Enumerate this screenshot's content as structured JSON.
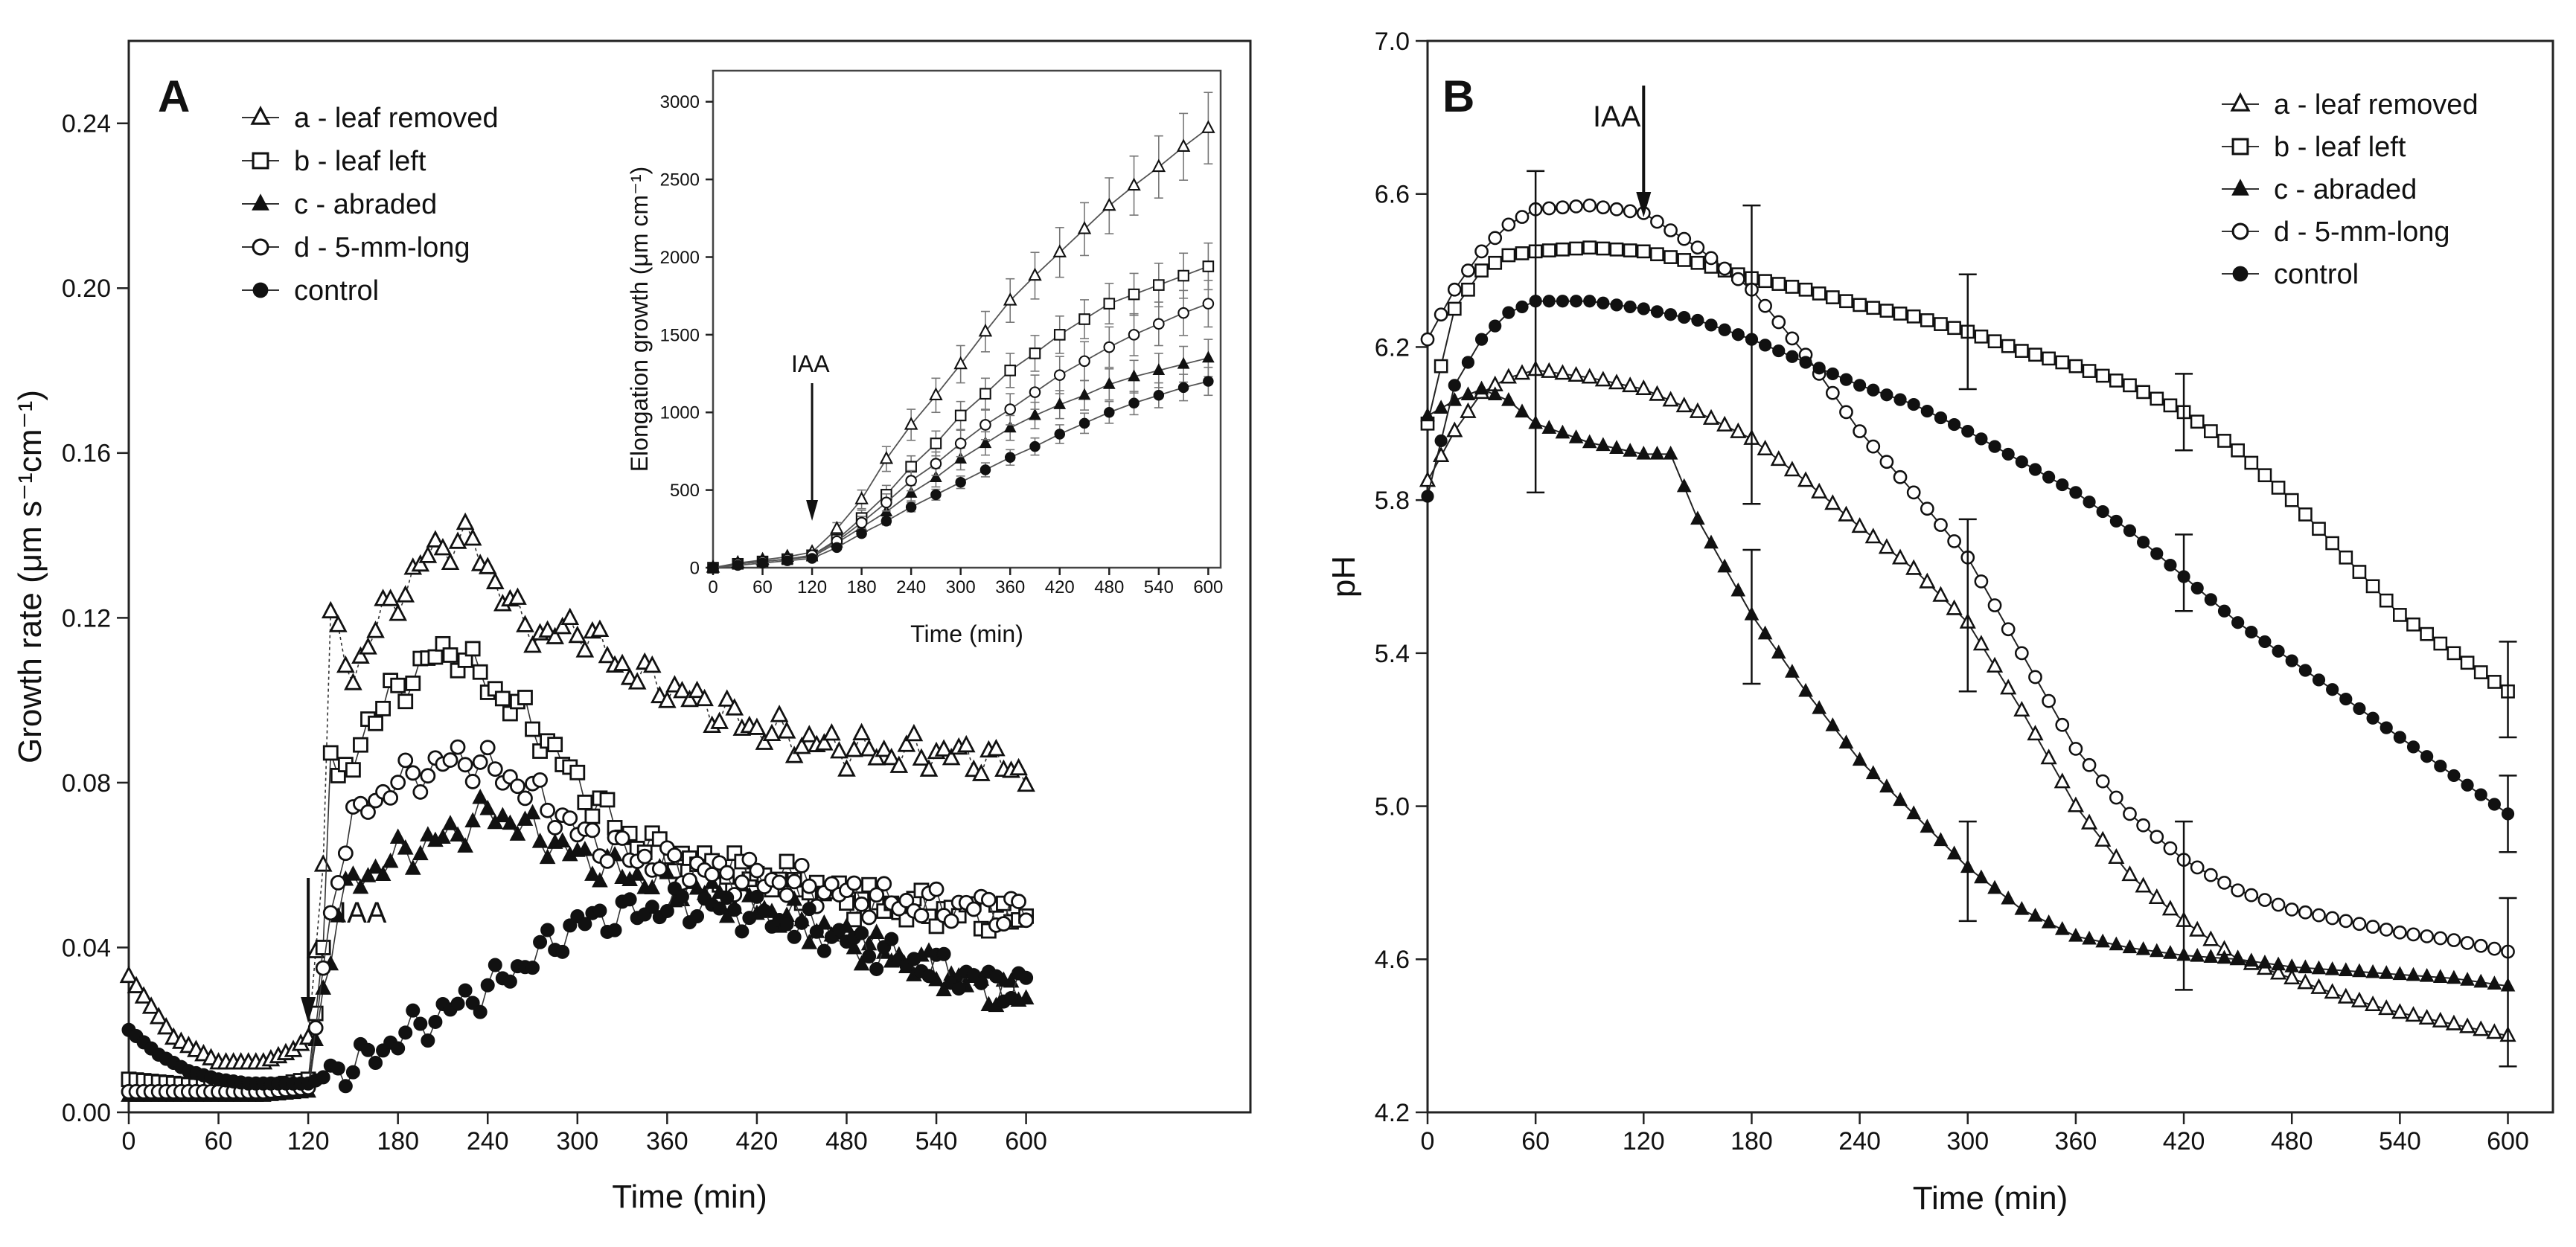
{
  "chart_data": [
    {
      "panel": "A",
      "type": "scatter",
      "xlabel": "Time (min)",
      "ylabel": "Growth rate (μm s⁻¹cm⁻¹)",
      "xlim": [
        0,
        750
      ],
      "ylim": [
        0,
        0.26
      ],
      "xticks": [
        0,
        60,
        120,
        180,
        240,
        300,
        360,
        420,
        480,
        540,
        600
      ],
      "yticks": [
        0.0,
        0.04,
        0.08,
        0.12,
        0.16,
        0.2,
        0.24
      ],
      "annotation": {
        "text": "IAA",
        "x": 120
      },
      "legend_position": "top-left",
      "series": [
        {
          "name": "a - leaf removed",
          "marker": "triangle-open",
          "x": [
            0,
            30,
            60,
            90,
            110,
            120,
            130,
            135,
            140,
            150,
            160,
            180,
            200,
            220,
            230,
            240,
            260,
            280,
            300,
            330,
            360,
            390,
            420,
            450,
            480,
            510,
            540,
            570,
            600
          ],
          "y": [
            0.033,
            0.018,
            0.012,
            0.012,
            0.015,
            0.018,
            0.06,
            0.118,
            0.115,
            0.105,
            0.115,
            0.125,
            0.135,
            0.139,
            0.138,
            0.132,
            0.12,
            0.115,
            0.118,
            0.108,
            0.103,
            0.098,
            0.093,
            0.09,
            0.088,
            0.087,
            0.087,
            0.086,
            0.082
          ]
        },
        {
          "name": "b - leaf left",
          "marker": "square-open",
          "x": [
            0,
            30,
            60,
            90,
            120,
            130,
            135,
            140,
            150,
            160,
            180,
            200,
            220,
            240,
            260,
            280,
            300,
            330,
            360,
            390,
            420,
            450,
            480,
            510,
            540,
            570,
            600
          ],
          "y": [
            0.008,
            0.007,
            0.006,
            0.006,
            0.008,
            0.04,
            0.09,
            0.078,
            0.085,
            0.095,
            0.102,
            0.11,
            0.112,
            0.104,
            0.098,
            0.09,
            0.08,
            0.068,
            0.062,
            0.06,
            0.058,
            0.055,
            0.052,
            0.05,
            0.049,
            0.048,
            0.047
          ]
        },
        {
          "name": "c - abraded",
          "marker": "triangle-filled",
          "x": [
            0,
            30,
            60,
            90,
            120,
            130,
            140,
            150,
            160,
            180,
            200,
            220,
            240,
            260,
            280,
            300,
            330,
            360,
            390,
            420,
            450,
            480,
            510,
            540,
            570,
            600
          ],
          "y": [
            0.004,
            0.004,
            0.004,
            0.004,
            0.005,
            0.03,
            0.05,
            0.055,
            0.058,
            0.062,
            0.065,
            0.068,
            0.073,
            0.07,
            0.066,
            0.062,
            0.058,
            0.055,
            0.053,
            0.05,
            0.046,
            0.042,
            0.038,
            0.034,
            0.03,
            0.028
          ]
        },
        {
          "name": "d - 5-mm-long",
          "marker": "circle-open",
          "x": [
            0,
            30,
            60,
            90,
            120,
            130,
            140,
            150,
            160,
            180,
            200,
            220,
            240,
            260,
            280,
            300,
            330,
            360,
            390,
            420,
            450,
            480,
            510,
            540,
            570,
            600
          ],
          "y": [
            0.005,
            0.005,
            0.005,
            0.005,
            0.006,
            0.035,
            0.06,
            0.07,
            0.075,
            0.08,
            0.083,
            0.086,
            0.084,
            0.08,
            0.075,
            0.068,
            0.063,
            0.06,
            0.058,
            0.057,
            0.055,
            0.053,
            0.051,
            0.05,
            0.05,
            0.048
          ]
        },
        {
          "name": "control",
          "marker": "circle-filled",
          "x": [
            0,
            20,
            40,
            60,
            80,
            100,
            120,
            140,
            160,
            180,
            200,
            220,
            240,
            260,
            280,
            300,
            330,
            360,
            390,
            420,
            450,
            480,
            510,
            540,
            570,
            600
          ],
          "y": [
            0.02,
            0.014,
            0.01,
            0.008,
            0.007,
            0.007,
            0.007,
            0.01,
            0.013,
            0.018,
            0.022,
            0.026,
            0.03,
            0.035,
            0.04,
            0.046,
            0.048,
            0.05,
            0.05,
            0.048,
            0.045,
            0.042,
            0.038,
            0.035,
            0.032,
            0.03
          ]
        }
      ]
    },
    {
      "panel": "A-inset",
      "type": "line",
      "xlabel": "Time (min)",
      "ylabel": "Elongation growth (μm cm⁻¹)",
      "xlim": [
        0,
        615
      ],
      "ylim": [
        0,
        3200
      ],
      "xticks": [
        0,
        60,
        120,
        180,
        240,
        300,
        360,
        420,
        480,
        540,
        600
      ],
      "yticks": [
        0,
        500,
        1000,
        1500,
        2000,
        2500,
        3000
      ],
      "annotation": {
        "text": "IAA",
        "x": 120
      },
      "x": [
        0,
        30,
        60,
        90,
        120,
        150,
        180,
        210,
        240,
        270,
        300,
        330,
        360,
        390,
        420,
        450,
        480,
        510,
        540,
        570,
        600
      ],
      "series": [
        {
          "name": "a - leaf removed",
          "marker": "triangle-open",
          "values": [
            0,
            30,
            50,
            70,
            100,
            250,
            440,
            700,
            920,
            1110,
            1310,
            1520,
            1720,
            1880,
            2030,
            2180,
            2330,
            2460,
            2580,
            2710,
            2830
          ],
          "err": [
            0,
            0,
            0,
            0,
            0,
            40,
            60,
            80,
            100,
            110,
            120,
            130,
            140,
            150,
            160,
            170,
            180,
            190,
            200,
            215,
            230
          ]
        },
        {
          "name": "b - leaf left",
          "marker": "square-open",
          "values": [
            0,
            25,
            40,
            55,
            80,
            180,
            320,
            470,
            650,
            800,
            980,
            1120,
            1270,
            1380,
            1500,
            1600,
            1700,
            1760,
            1820,
            1880,
            1940
          ],
          "err": [
            0,
            0,
            0,
            0,
            0,
            30,
            50,
            60,
            70,
            80,
            90,
            100,
            110,
            115,
            120,
            125,
            130,
            135,
            140,
            145,
            150
          ]
        },
        {
          "name": "c - abraded",
          "marker": "triangle-filled",
          "values": [
            0,
            25,
            40,
            55,
            70,
            160,
            260,
            360,
            480,
            580,
            700,
            800,
            900,
            980,
            1050,
            1110,
            1180,
            1230,
            1270,
            1310,
            1350
          ],
          "err": [
            0,
            0,
            0,
            0,
            0,
            20,
            30,
            40,
            50,
            60,
            70,
            75,
            80,
            85,
            90,
            95,
            100,
            105,
            110,
            115,
            120
          ]
        },
        {
          "name": "d - 5-mm-long",
          "marker": "circle-open",
          "values": [
            0,
            25,
            40,
            55,
            80,
            170,
            290,
            420,
            560,
            670,
            800,
            920,
            1020,
            1130,
            1240,
            1330,
            1420,
            1500,
            1570,
            1640,
            1700
          ],
          "err": [
            0,
            0,
            0,
            0,
            0,
            25,
            40,
            55,
            65,
            75,
            85,
            95,
            100,
            110,
            120,
            125,
            130,
            135,
            140,
            145,
            150
          ]
        },
        {
          "name": "control",
          "marker": "circle-filled",
          "values": [
            0,
            15,
            30,
            45,
            60,
            130,
            220,
            300,
            390,
            470,
            550,
            630,
            710,
            780,
            860,
            930,
            1000,
            1060,
            1110,
            1160,
            1200
          ],
          "err": [
            0,
            0,
            0,
            0,
            0,
            15,
            20,
            25,
            30,
            35,
            40,
            45,
            50,
            55,
            60,
            65,
            70,
            75,
            80,
            85,
            90
          ]
        }
      ]
    },
    {
      "panel": "B",
      "type": "line",
      "xlabel": "Time (min)",
      "ylabel": "pH",
      "xlim": [
        0,
        625
      ],
      "ylim": [
        4.2,
        7.0
      ],
      "xticks": [
        0,
        60,
        120,
        180,
        240,
        300,
        360,
        420,
        480,
        540,
        600
      ],
      "yticks": [
        4.2,
        4.6,
        5.0,
        5.4,
        5.8,
        6.2,
        6.6,
        7.0
      ],
      "annotation": {
        "text": "IAA",
        "x": 120
      },
      "legend_position": "top-right",
      "series": [
        {
          "name": "a - leaf removed",
          "marker": "triangle-open",
          "x": [
            0,
            15,
            30,
            45,
            60,
            90,
            120,
            150,
            180,
            210,
            240,
            270,
            300,
            330,
            360,
            390,
            420,
            450,
            480,
            510,
            540,
            570,
            600
          ],
          "y": [
            5.85,
            5.98,
            6.08,
            6.12,
            6.14,
            6.12,
            6.09,
            6.03,
            5.96,
            5.85,
            5.73,
            5.62,
            5.48,
            5.25,
            5.0,
            4.82,
            4.7,
            4.6,
            4.55,
            4.5,
            4.46,
            4.43,
            4.4
          ]
        },
        {
          "name": "b - leaf left",
          "marker": "square-open",
          "x": [
            0,
            15,
            30,
            45,
            60,
            90,
            120,
            150,
            180,
            210,
            240,
            270,
            300,
            330,
            360,
            390,
            420,
            450,
            480,
            510,
            540,
            570,
            600
          ],
          "y": [
            6.0,
            6.3,
            6.4,
            6.44,
            6.45,
            6.46,
            6.45,
            6.42,
            6.38,
            6.35,
            6.31,
            6.28,
            6.24,
            6.19,
            6.15,
            6.1,
            6.03,
            5.93,
            5.8,
            5.65,
            5.5,
            5.4,
            5.3
          ]
        },
        {
          "name": "c - abraded",
          "marker": "triangle-filled",
          "x": [
            0,
            15,
            30,
            45,
            60,
            90,
            120,
            135,
            150,
            180,
            210,
            240,
            270,
            300,
            330,
            360,
            390,
            420,
            450,
            480,
            510,
            540,
            570,
            600
          ],
          "y": [
            6.02,
            6.06,
            6.09,
            6.06,
            6.0,
            5.95,
            5.92,
            5.92,
            5.75,
            5.5,
            5.3,
            5.12,
            4.98,
            4.84,
            4.73,
            4.66,
            4.63,
            4.61,
            4.6,
            4.58,
            4.57,
            4.56,
            4.55,
            4.53
          ]
        },
        {
          "name": "d - 5-mm-long",
          "marker": "circle-open",
          "x": [
            0,
            15,
            30,
            45,
            60,
            90,
            120,
            150,
            180,
            210,
            240,
            270,
            300,
            330,
            360,
            390,
            420,
            450,
            480,
            510,
            540,
            570,
            600
          ],
          "y": [
            6.22,
            6.35,
            6.45,
            6.52,
            6.56,
            6.57,
            6.55,
            6.46,
            6.35,
            6.18,
            5.98,
            5.82,
            5.65,
            5.4,
            5.15,
            4.98,
            4.86,
            4.78,
            4.73,
            4.7,
            4.67,
            4.65,
            4.62
          ]
        },
        {
          "name": "control",
          "marker": "circle-filled",
          "x": [
            0,
            15,
            30,
            45,
            60,
            90,
            120,
            150,
            180,
            210,
            240,
            270,
            300,
            330,
            360,
            390,
            420,
            450,
            480,
            510,
            540,
            570,
            600
          ],
          "y": [
            5.81,
            6.1,
            6.22,
            6.29,
            6.32,
            6.32,
            6.3,
            6.27,
            6.22,
            6.16,
            6.1,
            6.05,
            5.98,
            5.9,
            5.82,
            5.72,
            5.6,
            5.48,
            5.38,
            5.28,
            5.18,
            5.08,
            4.98
          ]
        }
      ],
      "error_bars": [
        {
          "x": 60,
          "y": 6.24,
          "lo": 5.82,
          "hi": 6.66
        },
        {
          "x": 180,
          "y": 6.18,
          "lo": 5.79,
          "hi": 6.57
        },
        {
          "x": 180,
          "y": 5.5,
          "lo": 5.32,
          "hi": 5.67
        },
        {
          "x": 300,
          "y": 6.24,
          "lo": 6.09,
          "hi": 6.39
        },
        {
          "x": 300,
          "y": 5.52,
          "lo": 5.3,
          "hi": 5.75
        },
        {
          "x": 300,
          "y": 4.84,
          "lo": 4.7,
          "hi": 4.96
        },
        {
          "x": 420,
          "y": 5.6,
          "lo": 5.51,
          "hi": 5.71
        },
        {
          "x": 420,
          "y": 6.03,
          "lo": 5.93,
          "hi": 6.13
        },
        {
          "x": 420,
          "y": 4.75,
          "lo": 4.52,
          "hi": 4.96
        },
        {
          "x": 600,
          "y": 5.3,
          "lo": 5.18,
          "hi": 5.43
        },
        {
          "x": 600,
          "y": 4.98,
          "lo": 4.88,
          "hi": 5.08
        },
        {
          "x": 600,
          "y": 4.55,
          "lo": 4.32,
          "hi": 4.76
        }
      ]
    }
  ],
  "labels": {
    "panel_a": "A",
    "panel_b": "B",
    "iaa": "IAA"
  },
  "legend": [
    "a - leaf removed",
    "b - leaf left",
    "c - abraded",
    "d - 5-mm-long",
    "control"
  ]
}
